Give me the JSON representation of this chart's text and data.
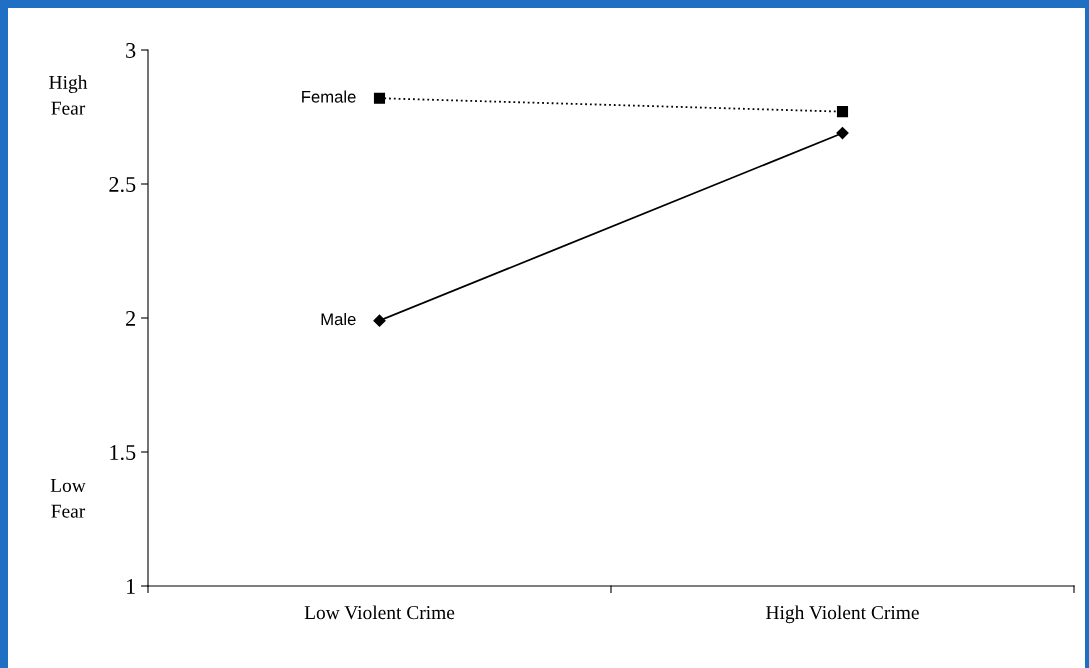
{
  "chart_data": {
    "type": "line",
    "categories": [
      "Low Violent Crime",
      "High Violent Crime"
    ],
    "series": [
      {
        "name": "Female",
        "color": "#000000",
        "values": [
          2.82,
          2.77
        ],
        "marker": "square",
        "line_style": "dotted"
      },
      {
        "name": "Male",
        "color": "#000000",
        "values": [
          1.99,
          2.69
        ],
        "marker": "diamond",
        "line_style": "solid"
      }
    ],
    "ylim": [
      1,
      3
    ],
    "yticks": [
      1,
      1.5,
      2,
      2.5,
      3
    ],
    "annotations": [
      "High\nFear",
      "Low\nFear"
    ],
    "grid": false,
    "legend": false
  }
}
